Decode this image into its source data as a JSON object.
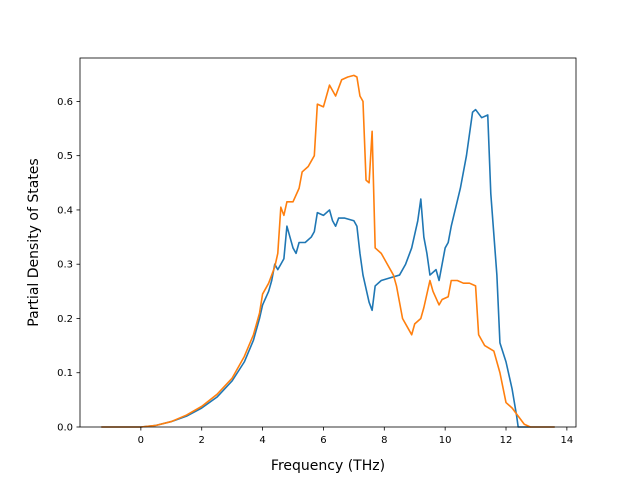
{
  "chart_data": {
    "type": "line",
    "title": "",
    "xlabel": "Frequency (THz)",
    "ylabel": "Partial Density of States",
    "xlim": [
      -2.0,
      14.3
    ],
    "ylim": [
      0.0,
      0.68
    ],
    "xticks": [
      0,
      2,
      4,
      6,
      8,
      10,
      12,
      14
    ],
    "yticks": [
      0.0,
      0.1,
      0.2,
      0.3,
      0.4,
      0.5,
      0.6
    ],
    "xtick_labels": [
      "0",
      "2",
      "4",
      "6",
      "8",
      "10",
      "12",
      "14"
    ],
    "ytick_labels": [
      "0.0",
      "0.1",
      "0.2",
      "0.3",
      "0.4",
      "0.5",
      "0.6"
    ],
    "grid": false,
    "legend": "none",
    "series": [
      {
        "color": "#1f77b4",
        "points": [
          [
            -1.3,
            0.0
          ],
          [
            0.0,
            0.0
          ],
          [
            0.5,
            0.003
          ],
          [
            1.0,
            0.01
          ],
          [
            1.5,
            0.02
          ],
          [
            2.0,
            0.035
          ],
          [
            2.5,
            0.055
          ],
          [
            3.0,
            0.085
          ],
          [
            3.4,
            0.12
          ],
          [
            3.7,
            0.16
          ],
          [
            3.9,
            0.2
          ],
          [
            4.0,
            0.225
          ],
          [
            4.2,
            0.25
          ],
          [
            4.3,
            0.27
          ],
          [
            4.4,
            0.3
          ],
          [
            4.5,
            0.29
          ],
          [
            4.6,
            0.3
          ],
          [
            4.7,
            0.31
          ],
          [
            4.8,
            0.37
          ],
          [
            4.9,
            0.35
          ],
          [
            5.0,
            0.33
          ],
          [
            5.1,
            0.32
          ],
          [
            5.2,
            0.34
          ],
          [
            5.4,
            0.34
          ],
          [
            5.6,
            0.35
          ],
          [
            5.7,
            0.36
          ],
          [
            5.8,
            0.395
          ],
          [
            6.0,
            0.39
          ],
          [
            6.2,
            0.4
          ],
          [
            6.3,
            0.38
          ],
          [
            6.4,
            0.37
          ],
          [
            6.5,
            0.385
          ],
          [
            6.7,
            0.385
          ],
          [
            7.0,
            0.38
          ],
          [
            7.1,
            0.37
          ],
          [
            7.2,
            0.32
          ],
          [
            7.3,
            0.28
          ],
          [
            7.5,
            0.23
          ],
          [
            7.6,
            0.215
          ],
          [
            7.7,
            0.26
          ],
          [
            7.9,
            0.27
          ],
          [
            8.2,
            0.275
          ],
          [
            8.5,
            0.28
          ],
          [
            8.7,
            0.3
          ],
          [
            8.9,
            0.33
          ],
          [
            9.1,
            0.38
          ],
          [
            9.2,
            0.42
          ],
          [
            9.3,
            0.35
          ],
          [
            9.4,
            0.32
          ],
          [
            9.5,
            0.28
          ],
          [
            9.7,
            0.29
          ],
          [
            9.8,
            0.27
          ],
          [
            10.0,
            0.33
          ],
          [
            10.1,
            0.34
          ],
          [
            10.2,
            0.37
          ],
          [
            10.5,
            0.44
          ],
          [
            10.7,
            0.5
          ],
          [
            10.9,
            0.58
          ],
          [
            11.0,
            0.585
          ],
          [
            11.2,
            0.57
          ],
          [
            11.4,
            0.575
          ],
          [
            11.5,
            0.43
          ],
          [
            11.7,
            0.28
          ],
          [
            11.8,
            0.155
          ],
          [
            12.0,
            0.12
          ],
          [
            12.2,
            0.07
          ],
          [
            12.35,
            0.02
          ],
          [
            12.4,
            0.0
          ],
          [
            13.6,
            0.0
          ]
        ]
      },
      {
        "color": "#ff7f0e",
        "points": [
          [
            -1.3,
            0.0
          ],
          [
            0.0,
            0.0
          ],
          [
            0.5,
            0.003
          ],
          [
            1.0,
            0.01
          ],
          [
            1.5,
            0.022
          ],
          [
            2.0,
            0.038
          ],
          [
            2.5,
            0.06
          ],
          [
            3.0,
            0.09
          ],
          [
            3.4,
            0.13
          ],
          [
            3.7,
            0.17
          ],
          [
            3.9,
            0.21
          ],
          [
            4.0,
            0.245
          ],
          [
            4.2,
            0.265
          ],
          [
            4.3,
            0.28
          ],
          [
            4.4,
            0.295
          ],
          [
            4.5,
            0.32
          ],
          [
            4.6,
            0.405
          ],
          [
            4.7,
            0.39
          ],
          [
            4.8,
            0.415
          ],
          [
            5.0,
            0.415
          ],
          [
            5.2,
            0.44
          ],
          [
            5.3,
            0.47
          ],
          [
            5.5,
            0.48
          ],
          [
            5.7,
            0.5
          ],
          [
            5.8,
            0.595
          ],
          [
            6.0,
            0.59
          ],
          [
            6.2,
            0.63
          ],
          [
            6.4,
            0.61
          ],
          [
            6.6,
            0.64
          ],
          [
            6.8,
            0.645
          ],
          [
            7.0,
            0.648
          ],
          [
            7.1,
            0.645
          ],
          [
            7.2,
            0.61
          ],
          [
            7.3,
            0.6
          ],
          [
            7.4,
            0.455
          ],
          [
            7.5,
            0.45
          ],
          [
            7.6,
            0.545
          ],
          [
            7.7,
            0.33
          ],
          [
            7.9,
            0.32
          ],
          [
            8.1,
            0.3
          ],
          [
            8.3,
            0.28
          ],
          [
            8.4,
            0.26
          ],
          [
            8.6,
            0.2
          ],
          [
            8.8,
            0.18
          ],
          [
            8.9,
            0.17
          ],
          [
            9.0,
            0.19
          ],
          [
            9.2,
            0.2
          ],
          [
            9.3,
            0.22
          ],
          [
            9.5,
            0.27
          ],
          [
            9.6,
            0.25
          ],
          [
            9.8,
            0.225
          ],
          [
            9.9,
            0.235
          ],
          [
            10.1,
            0.24
          ],
          [
            10.2,
            0.27
          ],
          [
            10.4,
            0.27
          ],
          [
            10.6,
            0.265
          ],
          [
            10.8,
            0.265
          ],
          [
            11.0,
            0.26
          ],
          [
            11.1,
            0.17
          ],
          [
            11.3,
            0.15
          ],
          [
            11.6,
            0.14
          ],
          [
            11.8,
            0.1
          ],
          [
            12.0,
            0.045
          ],
          [
            12.2,
            0.035
          ],
          [
            12.4,
            0.02
          ],
          [
            12.6,
            0.005
          ],
          [
            12.8,
            0.0
          ],
          [
            13.6,
            0.0
          ]
        ]
      }
    ]
  }
}
